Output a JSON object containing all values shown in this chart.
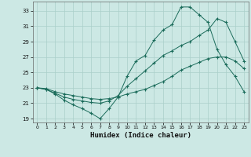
{
  "xlabel": "Humidex (Indice chaleur)",
  "xlim": [
    -0.5,
    23.5
  ],
  "ylim": [
    18.5,
    34.2
  ],
  "yticks": [
    19,
    21,
    23,
    25,
    27,
    29,
    31,
    33
  ],
  "xticks": [
    0,
    1,
    2,
    3,
    4,
    5,
    6,
    7,
    8,
    9,
    10,
    11,
    12,
    13,
    14,
    15,
    16,
    17,
    18,
    19,
    20,
    21,
    22,
    23
  ],
  "bg_color": "#cce8e4",
  "grid_color": "#aacfc9",
  "line_color": "#1a6b5a",
  "line1_y": [
    23.0,
    22.8,
    22.2,
    21.4,
    20.8,
    20.3,
    19.7,
    19.0,
    20.3,
    21.8,
    24.5,
    26.5,
    27.2,
    29.2,
    30.5,
    31.2,
    33.5,
    33.5,
    32.5,
    31.5,
    28.0,
    26.0,
    24.5,
    22.5
  ],
  "line2_y": [
    23.0,
    22.8,
    22.3,
    21.8,
    21.5,
    21.3,
    21.1,
    21.0,
    21.3,
    22.0,
    23.2,
    24.2,
    25.2,
    26.2,
    27.2,
    27.8,
    28.5,
    29.0,
    29.8,
    30.5,
    32.0,
    31.5,
    29.0,
    26.5
  ],
  "line3_y": [
    23.0,
    22.9,
    22.5,
    22.2,
    22.0,
    21.8,
    21.6,
    21.5,
    21.6,
    21.8,
    22.2,
    22.5,
    22.8,
    23.3,
    23.8,
    24.5,
    25.3,
    25.8,
    26.3,
    26.8,
    27.0,
    27.0,
    26.5,
    25.5
  ]
}
